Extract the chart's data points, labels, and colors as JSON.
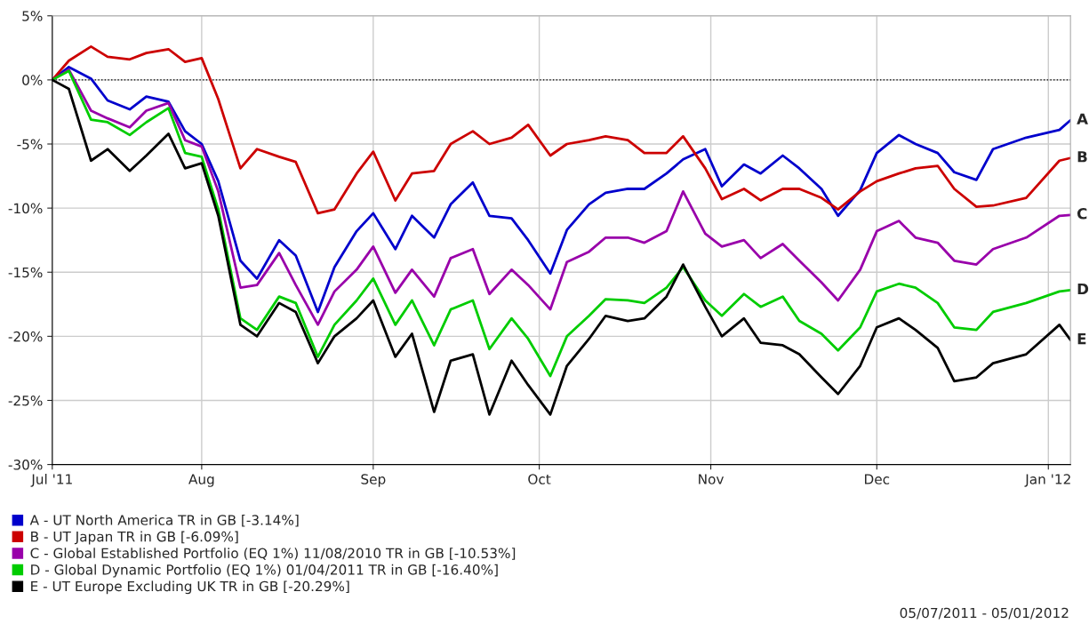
{
  "chart_data": {
    "type": "line",
    "x": [
      "2011-07-05",
      "2011-07-08",
      "2011-07-12",
      "2011-07-15",
      "2011-07-19",
      "2011-07-22",
      "2011-07-26",
      "2011-07-29",
      "2011-08-01",
      "2011-08-04",
      "2011-08-08",
      "2011-08-11",
      "2011-08-15",
      "2011-08-18",
      "2011-08-22",
      "2011-08-25",
      "2011-08-29",
      "2011-09-01",
      "2011-09-05",
      "2011-09-08",
      "2011-09-12",
      "2011-09-15",
      "2011-09-19",
      "2011-09-22",
      "2011-09-26",
      "2011-09-29",
      "2011-10-03",
      "2011-10-06",
      "2011-10-10",
      "2011-10-13",
      "2011-10-17",
      "2011-10-20",
      "2011-10-24",
      "2011-10-27",
      "2011-10-31",
      "2011-11-03",
      "2011-11-07",
      "2011-11-10",
      "2011-11-14",
      "2011-11-17",
      "2011-11-21",
      "2011-11-24",
      "2011-11-28",
      "2011-12-01",
      "2011-12-05",
      "2011-12-08",
      "2011-12-12",
      "2011-12-15",
      "2011-12-19",
      "2011-12-22",
      "2011-12-28",
      "2012-01-03",
      "2012-01-05"
    ],
    "series": [
      {
        "name": "A - UT North America TR in GB [-3.14%]",
        "color": "#0000cc",
        "values": [
          0,
          1.0,
          0.1,
          -1.6,
          -2.3,
          -1.3,
          -1.7,
          -4.0,
          -5.0,
          -7.9,
          -14.1,
          -15.5,
          -12.5,
          -13.7,
          -18.1,
          -14.6,
          -11.8,
          -10.4,
          -13.2,
          -10.6,
          -12.3,
          -9.7,
          -8.0,
          -10.6,
          -10.8,
          -12.5,
          -15.1,
          -11.7,
          -9.7,
          -8.8,
          -8.5,
          -8.5,
          -7.3,
          -6.2,
          -5.4,
          -8.3,
          -6.6,
          -7.3,
          -5.9,
          -6.9,
          -8.5,
          -10.6,
          -8.6,
          -5.7,
          -4.3,
          -5.0,
          -5.7,
          -7.2,
          -7.8,
          -5.4,
          -4.5,
          -3.9,
          -3.14
        ]
      },
      {
        "name": "B - UT Japan TR in GB [-6.09%]",
        "color": "#cc0000",
        "values": [
          0,
          1.5,
          2.6,
          1.8,
          1.6,
          2.1,
          2.4,
          1.4,
          1.7,
          -1.5,
          -6.9,
          -5.4,
          -6.0,
          -6.4,
          -10.4,
          -10.1,
          -7.3,
          -5.6,
          -9.4,
          -7.3,
          -7.1,
          -5.0,
          -4.0,
          -5.0,
          -4.5,
          -3.5,
          -5.9,
          -5.0,
          -4.7,
          -4.4,
          -4.7,
          -5.7,
          -5.7,
          -4.4,
          -6.9,
          -9.3,
          -8.5,
          -9.4,
          -8.5,
          -8.5,
          -9.2,
          -10.1,
          -8.7,
          -7.9,
          -7.3,
          -6.9,
          -6.7,
          -8.5,
          -9.9,
          -9.8,
          -9.2,
          -6.3,
          -6.09
        ]
      },
      {
        "name": "C - Global Established Portfolio (EQ 1%) 11/08/2010 TR in GB [-10.53%]",
        "color": "#9900aa",
        "values": [
          0,
          0.8,
          -2.4,
          -3.0,
          -3.7,
          -2.4,
          -1.8,
          -4.7,
          -5.2,
          -8.7,
          -16.2,
          -16.0,
          -13.5,
          -16.0,
          -19.1,
          -16.5,
          -14.8,
          -13.0,
          -16.6,
          -14.8,
          -16.9,
          -13.9,
          -13.2,
          -16.7,
          -14.8,
          -16.0,
          -17.9,
          -14.2,
          -13.4,
          -12.3,
          -12.3,
          -12.7,
          -11.8,
          -8.7,
          -12.0,
          -13.0,
          -12.5,
          -13.9,
          -12.8,
          -14.1,
          -15.8,
          -17.2,
          -14.8,
          -11.8,
          -11.0,
          -12.3,
          -12.7,
          -14.1,
          -14.4,
          -13.2,
          -12.3,
          -10.6,
          -10.53
        ]
      },
      {
        "name": "D - Global Dynamic Portfolio (EQ 1%) 01/04/2011 TR in GB [-16.40%]",
        "color": "#00cc00",
        "values": [
          0,
          0.7,
          -3.1,
          -3.3,
          -4.3,
          -3.3,
          -2.2,
          -5.7,
          -6.0,
          -10.1,
          -18.6,
          -19.5,
          -16.9,
          -17.4,
          -21.6,
          -19.1,
          -17.2,
          -15.5,
          -19.1,
          -17.2,
          -20.7,
          -17.9,
          -17.2,
          -21.0,
          -18.6,
          -20.2,
          -23.1,
          -20.0,
          -18.4,
          -17.1,
          -17.2,
          -17.4,
          -16.2,
          -14.6,
          -17.2,
          -18.4,
          -16.7,
          -17.7,
          -16.9,
          -18.8,
          -19.8,
          -21.1,
          -19.3,
          -16.5,
          -15.9,
          -16.2,
          -17.4,
          -19.3,
          -19.5,
          -18.1,
          -17.4,
          -16.5,
          -16.4
        ]
      },
      {
        "name": "E - UT Europe Excluding UK TR in GB [-20.29%]",
        "color": "#000000",
        "values": [
          0,
          -0.7,
          -6.3,
          -5.4,
          -7.1,
          -5.9,
          -4.2,
          -6.9,
          -6.5,
          -10.6,
          -19.1,
          -20.0,
          -17.4,
          -18.1,
          -22.1,
          -20.0,
          -18.6,
          -17.2,
          -21.6,
          -19.8,
          -25.9,
          -21.9,
          -21.4,
          -26.1,
          -21.9,
          -23.8,
          -26.1,
          -22.3,
          -20.2,
          -18.4,
          -18.8,
          -18.6,
          -16.9,
          -14.4,
          -17.7,
          -20.0,
          -18.6,
          -20.5,
          -20.7,
          -21.4,
          -23.2,
          -24.5,
          -22.3,
          -19.3,
          -18.6,
          -19.5,
          -20.9,
          -23.5,
          -23.2,
          -22.1,
          -21.4,
          -19.1,
          -20.29
        ]
      }
    ],
    "xlim": [
      "2011-07-05",
      "2012-01-05"
    ],
    "xticks": [
      {
        "value": "2011-07-05",
        "label": "Jul '11"
      },
      {
        "value": "2011-08-01",
        "label": "Aug"
      },
      {
        "value": "2011-09-01",
        "label": "Sep"
      },
      {
        "value": "2011-10-01",
        "label": "Oct"
      },
      {
        "value": "2011-11-01",
        "label": "Nov"
      },
      {
        "value": "2011-12-01",
        "label": "Dec"
      },
      {
        "value": "2012-01-01",
        "label": "Jan '12"
      }
    ],
    "ylim": [
      -30,
      5
    ],
    "yticks": [
      {
        "value": -30,
        "label": "-30%"
      },
      {
        "value": -25,
        "label": "-25%"
      },
      {
        "value": -20,
        "label": "-20%"
      },
      {
        "value": -15,
        "label": "-15%"
      },
      {
        "value": -10,
        "label": "-10%"
      },
      {
        "value": -5,
        "label": "-5%"
      },
      {
        "value": 0,
        "label": "0%"
      },
      {
        "value": 5,
        "label": "5%"
      }
    ],
    "ref_lines": [
      {
        "axis": "y",
        "value": 0,
        "color": "#000000",
        "line_style": "dotted"
      }
    ],
    "annotations": [
      {
        "text": "A",
        "x": "2012-01-05",
        "y": -3.14
      },
      {
        "text": "B",
        "x": "2012-01-05",
        "y": -6.09
      },
      {
        "text": "C",
        "x": "2012-01-05",
        "y": -10.53
      },
      {
        "text": "D",
        "x": "2012-01-05",
        "y": -16.4
      },
      {
        "text": "E",
        "x": "2012-01-05",
        "y": -20.29
      },
      "05/07/2011 - 05/01/2012"
    ],
    "grid": true,
    "legend": "bottom left",
    "marker": "none",
    "line_style": "solid"
  }
}
